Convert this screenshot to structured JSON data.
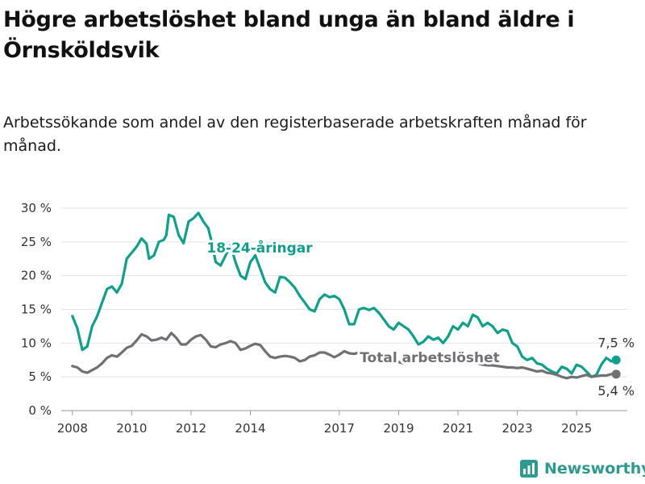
{
  "title": "Högre arbetslöshet bland unga än bland äldre i Örnsköldsvik",
  "subtitle": "Arbetssökande som andel av den registerbaserade arbetskraften månad för månad.",
  "brand": {
    "name": "Newsworthy",
    "icon": "bar-chart-logo-icon",
    "color": "#2e9a8f"
  },
  "chart_data": {
    "type": "line",
    "x_ticks": [
      "2008",
      "2010",
      "2012",
      "2014",
      "2017",
      "2019",
      "2021",
      "2023",
      "2025"
    ],
    "y_ticks": [
      "0 %",
      "5 %",
      "10 %",
      "15 %",
      "20 %",
      "25 %",
      "30 %"
    ],
    "ylim": [
      0,
      30
    ],
    "grid": true,
    "series": [
      {
        "name": "18-24-åringar",
        "color": "#0f9f8c",
        "end_label": "7,5 %",
        "points": [
          [
            "2008-01",
            14.0
          ],
          [
            "2008-03",
            12.2
          ],
          [
            "2008-05",
            9.0
          ],
          [
            "2008-07",
            9.5
          ],
          [
            "2008-09",
            12.5
          ],
          [
            "2008-11",
            14.0
          ],
          [
            "2009-01",
            16.0
          ],
          [
            "2009-03",
            18.0
          ],
          [
            "2009-05",
            18.4
          ],
          [
            "2009-07",
            17.5
          ],
          [
            "2009-09",
            18.8
          ],
          [
            "2009-11",
            22.5
          ],
          [
            "2010-01",
            23.4
          ],
          [
            "2010-03",
            24.3
          ],
          [
            "2010-05",
            25.5
          ],
          [
            "2010-07",
            24.7
          ],
          [
            "2010-08",
            22.5
          ],
          [
            "2010-10",
            23.0
          ],
          [
            "2010-12",
            25.0
          ],
          [
            "2011-02",
            25.3
          ],
          [
            "2011-03",
            26.0
          ],
          [
            "2011-04",
            29.0
          ],
          [
            "2011-06",
            28.7
          ],
          [
            "2011-08",
            26.0
          ],
          [
            "2011-10",
            24.8
          ],
          [
            "2011-12",
            28.0
          ],
          [
            "2012-02",
            28.5
          ],
          [
            "2012-04",
            29.3
          ],
          [
            "2012-06",
            28.0
          ],
          [
            "2012-08",
            27.0
          ],
          [
            "2012-09",
            25.5
          ],
          [
            "2012-11",
            22.0
          ],
          [
            "2013-01",
            21.5
          ],
          [
            "2013-03",
            23.0
          ],
          [
            "2013-05",
            24.5
          ],
          [
            "2013-07",
            22.0
          ],
          [
            "2013-09",
            20.0
          ],
          [
            "2013-11",
            19.5
          ],
          [
            "2014-01",
            22.0
          ],
          [
            "2014-03",
            23.0
          ],
          [
            "2014-05",
            21.0
          ],
          [
            "2014-07",
            19.0
          ],
          [
            "2014-09",
            18.0
          ],
          [
            "2014-11",
            17.5
          ],
          [
            "2015-01",
            19.8
          ],
          [
            "2015-03",
            19.7
          ],
          [
            "2015-05",
            19.0
          ],
          [
            "2015-07",
            18.2
          ],
          [
            "2015-09",
            17.0
          ],
          [
            "2015-11",
            16.0
          ],
          [
            "2016-01",
            15.0
          ],
          [
            "2016-03",
            14.7
          ],
          [
            "2016-05",
            16.5
          ],
          [
            "2016-07",
            17.2
          ],
          [
            "2016-09",
            16.8
          ],
          [
            "2016-11",
            17.0
          ],
          [
            "2017-01",
            16.5
          ],
          [
            "2017-03",
            15.0
          ],
          [
            "2017-05",
            12.8
          ],
          [
            "2017-07",
            12.8
          ],
          [
            "2017-09",
            15.0
          ],
          [
            "2017-11",
            15.2
          ],
          [
            "2018-01",
            14.9
          ],
          [
            "2018-03",
            15.2
          ],
          [
            "2018-05",
            14.5
          ],
          [
            "2018-07",
            13.5
          ],
          [
            "2018-09",
            12.5
          ],
          [
            "2018-11",
            12.0
          ],
          [
            "2019-01",
            13.0
          ],
          [
            "2019-03",
            12.5
          ],
          [
            "2019-05",
            12.0
          ],
          [
            "2019-07",
            11.0
          ],
          [
            "2019-09",
            9.8
          ],
          [
            "2019-11",
            10.2
          ],
          [
            "2020-01",
            11.0
          ],
          [
            "2020-03",
            10.5
          ],
          [
            "2020-05",
            10.8
          ],
          [
            "2020-07",
            10.0
          ],
          [
            "2020-09",
            11.0
          ],
          [
            "2020-11",
            12.5
          ],
          [
            "2021-01",
            12.0
          ],
          [
            "2021-03",
            13.0
          ],
          [
            "2021-05",
            12.5
          ],
          [
            "2021-07",
            14.2
          ],
          [
            "2021-09",
            13.8
          ],
          [
            "2021-11",
            12.5
          ],
          [
            "2022-01",
            13.0
          ],
          [
            "2022-03",
            12.5
          ],
          [
            "2022-05",
            11.5
          ],
          [
            "2022-07",
            12.0
          ],
          [
            "2022-09",
            11.8
          ],
          [
            "2022-11",
            10.0
          ],
          [
            "2023-01",
            9.5
          ],
          [
            "2023-03",
            8.0
          ],
          [
            "2023-05",
            7.5
          ],
          [
            "2023-07",
            7.8
          ],
          [
            "2023-09",
            7.0
          ],
          [
            "2023-11",
            6.8
          ],
          [
            "2024-01",
            6.2
          ],
          [
            "2024-03",
            5.8
          ],
          [
            "2024-05",
            5.5
          ],
          [
            "2024-07",
            6.5
          ],
          [
            "2024-09",
            6.2
          ],
          [
            "2024-11",
            5.5
          ],
          [
            "2025-01",
            6.8
          ],
          [
            "2025-03",
            6.5
          ],
          [
            "2025-05",
            5.8
          ],
          [
            "2025-07",
            5.0
          ],
          [
            "2025-09",
            5.3
          ],
          [
            "2025-11",
            6.8
          ],
          [
            "2026-01",
            7.8
          ],
          [
            "2026-03",
            7.3
          ],
          [
            "2026-05",
            7.5
          ]
        ]
      },
      {
        "name": "Total arbetslöshet",
        "color": "#707074",
        "end_label": "5,4 %",
        "points": [
          [
            "2008-01",
            6.6
          ],
          [
            "2008-03",
            6.4
          ],
          [
            "2008-05",
            5.8
          ],
          [
            "2008-07",
            5.6
          ],
          [
            "2008-09",
            6.0
          ],
          [
            "2008-11",
            6.4
          ],
          [
            "2009-01",
            7.0
          ],
          [
            "2009-03",
            7.8
          ],
          [
            "2009-05",
            8.2
          ],
          [
            "2009-07",
            8.0
          ],
          [
            "2009-09",
            8.6
          ],
          [
            "2009-11",
            9.3
          ],
          [
            "2010-01",
            9.6
          ],
          [
            "2010-03",
            10.4
          ],
          [
            "2010-05",
            11.3
          ],
          [
            "2010-07",
            11.0
          ],
          [
            "2010-09",
            10.4
          ],
          [
            "2010-11",
            10.5
          ],
          [
            "2011-01",
            10.8
          ],
          [
            "2011-03",
            10.5
          ],
          [
            "2011-05",
            11.5
          ],
          [
            "2011-07",
            10.8
          ],
          [
            "2011-09",
            9.8
          ],
          [
            "2011-11",
            9.8
          ],
          [
            "2012-01",
            10.5
          ],
          [
            "2012-03",
            11.0
          ],
          [
            "2012-05",
            11.2
          ],
          [
            "2012-07",
            10.5
          ],
          [
            "2012-09",
            9.5
          ],
          [
            "2012-11",
            9.4
          ],
          [
            "2013-01",
            9.8
          ],
          [
            "2013-03",
            10.0
          ],
          [
            "2013-05",
            10.3
          ],
          [
            "2013-07",
            10.0
          ],
          [
            "2013-09",
            9.0
          ],
          [
            "2013-11",
            9.2
          ],
          [
            "2014-01",
            9.6
          ],
          [
            "2014-03",
            9.9
          ],
          [
            "2014-05",
            9.7
          ],
          [
            "2014-07",
            8.8
          ],
          [
            "2014-09",
            8.0
          ],
          [
            "2014-11",
            7.8
          ],
          [
            "2015-01",
            8.0
          ],
          [
            "2015-03",
            8.1
          ],
          [
            "2015-05",
            8.0
          ],
          [
            "2015-07",
            7.8
          ],
          [
            "2015-09",
            7.3
          ],
          [
            "2015-11",
            7.5
          ],
          [
            "2016-01",
            8.0
          ],
          [
            "2016-03",
            8.2
          ],
          [
            "2016-05",
            8.6
          ],
          [
            "2016-07",
            8.6
          ],
          [
            "2016-09",
            8.3
          ],
          [
            "2016-11",
            7.9
          ],
          [
            "2017-01",
            8.3
          ],
          [
            "2017-03",
            8.8
          ],
          [
            "2017-05",
            8.5
          ],
          [
            "2017-07",
            8.4
          ],
          [
            "2017-09",
            8.6
          ],
          [
            "2017-11",
            8.5
          ],
          [
            "2018-01",
            8.2
          ],
          [
            "2018-03",
            8.0
          ],
          [
            "2018-05",
            7.8
          ],
          [
            "2018-07",
            7.5
          ],
          [
            "2018-09",
            7.4
          ],
          [
            "2018-11",
            7.3
          ],
          [
            "2019-01",
            7.2
          ],
          [
            "2019-03",
            7.0
          ],
          [
            "2019-05",
            7.2
          ],
          [
            "2019-07",
            7.3
          ],
          [
            "2019-09",
            7.4
          ],
          [
            "2019-11",
            7.5
          ],
          [
            "2020-01",
            7.6
          ],
          [
            "2020-03",
            7.6
          ],
          [
            "2020-05",
            7.6
          ],
          [
            "2020-07",
            7.6
          ],
          [
            "2020-09",
            7.5
          ],
          [
            "2020-11",
            7.5
          ],
          [
            "2021-01",
            7.4
          ],
          [
            "2021-03",
            7.3
          ],
          [
            "2021-05",
            7.2
          ],
          [
            "2021-07",
            7.1
          ],
          [
            "2021-09",
            7.0
          ],
          [
            "2021-11",
            6.8
          ],
          [
            "2022-01",
            6.7
          ],
          [
            "2022-03",
            6.7
          ],
          [
            "2022-05",
            6.6
          ],
          [
            "2022-07",
            6.5
          ],
          [
            "2022-09",
            6.4
          ],
          [
            "2022-11",
            6.4
          ],
          [
            "2023-01",
            6.3
          ],
          [
            "2023-03",
            6.4
          ],
          [
            "2023-05",
            6.2
          ],
          [
            "2023-07",
            6.0
          ],
          [
            "2023-09",
            5.8
          ],
          [
            "2023-11",
            5.9
          ],
          [
            "2024-01",
            5.6
          ],
          [
            "2024-03",
            5.5
          ],
          [
            "2024-05",
            5.3
          ],
          [
            "2024-07",
            5.0
          ],
          [
            "2024-09",
            4.8
          ],
          [
            "2024-11",
            5.0
          ],
          [
            "2025-01",
            4.9
          ],
          [
            "2025-03",
            5.1
          ],
          [
            "2025-05",
            5.3
          ],
          [
            "2025-07",
            5.0
          ],
          [
            "2025-09",
            5.1
          ],
          [
            "2025-11",
            5.2
          ],
          [
            "2026-01",
            5.2
          ],
          [
            "2026-03",
            5.4
          ],
          [
            "2026-05",
            5.4
          ]
        ]
      }
    ]
  }
}
